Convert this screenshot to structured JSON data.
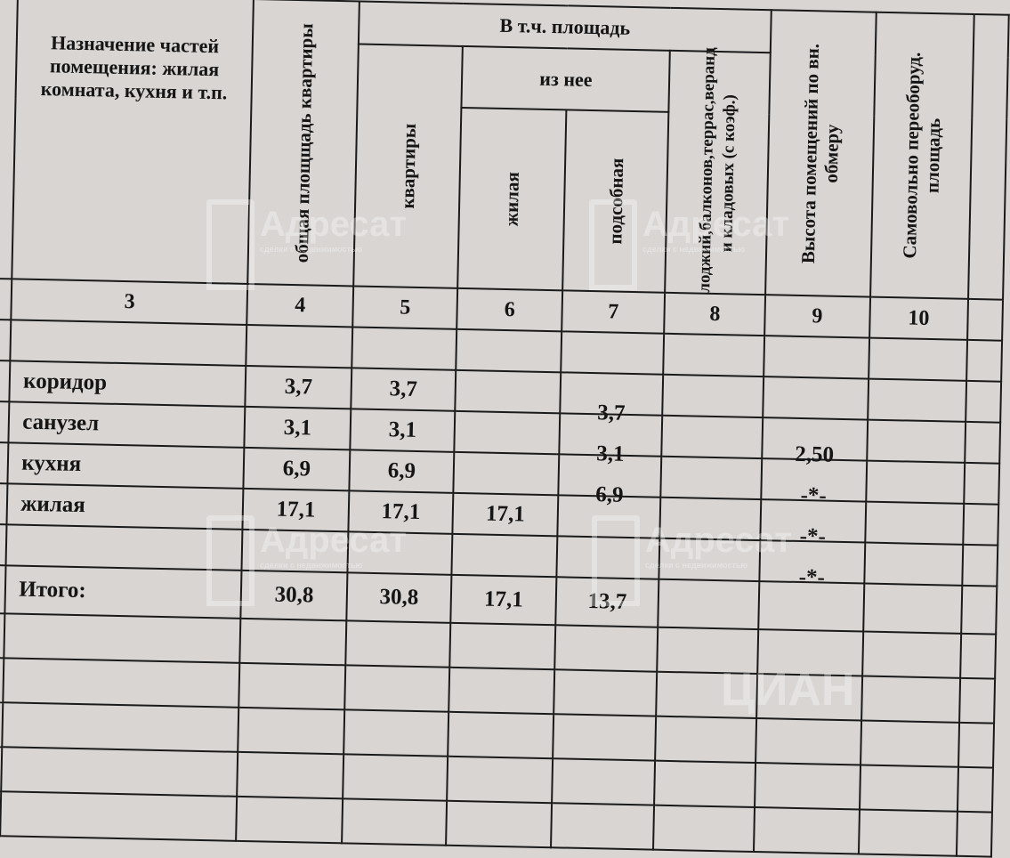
{
  "header": {
    "col3": "Назначение частей помещения: жилая комната, кухня и т.п.",
    "col4": "общая площщадь квартиры",
    "group": "В т.ч. площадь",
    "col5": "квартиры",
    "subgroup": "из нее",
    "col6": "жилая",
    "col7": "подсобная",
    "col8": "лоджий,балконов,террас,веранд и кладовых (с коэф.)",
    "col9": "Высота помещений по вн. обмеру",
    "col10": "Самовольно переоборуд. площадь"
  },
  "column_numbers": [
    "3",
    "4",
    "5",
    "6",
    "7",
    "8",
    "9",
    "10"
  ],
  "rows": [
    {
      "name": "коридор",
      "c4": "3,7",
      "c5": "3,7",
      "c6": "",
      "c7": "3,7",
      "c9": ""
    },
    {
      "name": "санузел",
      "c4": "3,1",
      "c5": "3,1",
      "c6": "",
      "c7": "3,1",
      "c9": "2,50"
    },
    {
      "name": "кухня",
      "c4": "6,9",
      "c5": "6,9",
      "c6": "",
      "c7": "6,9",
      "c9": "-*-"
    },
    {
      "name": "жилая",
      "c4": "17,1",
      "c5": "17,1",
      "c6": "17,1",
      "c7": "",
      "c9": "-*-"
    },
    {
      "name": "",
      "c4": "",
      "c5": "",
      "c6": "",
      "c7": "",
      "c9": "-*-"
    }
  ],
  "total": {
    "name": "Итого:",
    "c4": "30,8",
    "c5": "30,8",
    "c6": "17,1",
    "c7": "13,7"
  },
  "watermarks": {
    "brand": "Адресат",
    "tagline": "сделки с недвижимостью",
    "cian": "ЦИАН"
  }
}
